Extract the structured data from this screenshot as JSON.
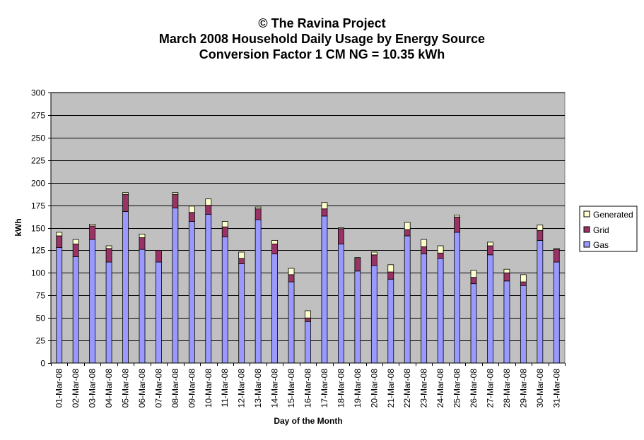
{
  "chart_data": {
    "type": "bar",
    "stacked": true,
    "title_lines": [
      "© The Ravina Project",
      "March 2008 Household Daily Usage by Energy Source",
      "Conversion Factor 1 CM NG = 10.35 kWh"
    ],
    "xlabel": "Day of the Month",
    "ylabel": "kWh",
    "ylim": [
      0,
      300
    ],
    "yticks": [
      0,
      25,
      50,
      75,
      100,
      125,
      150,
      175,
      200,
      225,
      250,
      275,
      300
    ],
    "grid": true,
    "legend_position": "right",
    "categories": [
      "01-Mar-08",
      "02-Mar-08",
      "03-Mar-08",
      "04-Mar-08",
      "05-Mar-08",
      "06-Mar-08",
      "07-Mar-08",
      "08-Mar-08",
      "09-Mar-08",
      "10-Mar-08",
      "11-Mar-08",
      "12-Mar-08",
      "13-Mar-08",
      "14-Mar-08",
      "15-Mar-08",
      "16-Mar-08",
      "17-Mar-08",
      "18-Mar-08",
      "19-Mar-08",
      "20-Mar-08",
      "21-Mar-08",
      "22-Mar-08",
      "23-Mar-08",
      "24-Mar-08",
      "25-Mar-08",
      "26-Mar-08",
      "27-Mar-08",
      "28-Mar-08",
      "29-Mar-08",
      "30-Mar-08",
      "31-Mar-08"
    ],
    "series": [
      {
        "name": "Gas",
        "color": "#9999ff",
        "values": [
          128,
          118,
          137,
          112,
          168,
          126,
          112,
          172,
          157,
          165,
          140,
          110,
          159,
          121,
          90,
          46,
          163,
          132,
          102,
          108,
          93,
          141,
          121,
          116,
          145,
          88,
          120,
          91,
          86,
          136,
          112
        ]
      },
      {
        "name": "Grid",
        "color": "#993366",
        "values": [
          13,
          14,
          15,
          15,
          19,
          13,
          13,
          15,
          10,
          10,
          11,
          6,
          12,
          11,
          8,
          4,
          8,
          17,
          14,
          12,
          8,
          7,
          8,
          6,
          17,
          7,
          10,
          9,
          4,
          11,
          14
        ]
      },
      {
        "name": "Generated",
        "color": "#ffffcc",
        "values": [
          4,
          5,
          2,
          3,
          2,
          4,
          0,
          2,
          7,
          7,
          6,
          7,
          2,
          4,
          7,
          8,
          7,
          1,
          1,
          3,
          8,
          8,
          8,
          8,
          2,
          8,
          4,
          4,
          8,
          6,
          1
        ]
      }
    ]
  }
}
